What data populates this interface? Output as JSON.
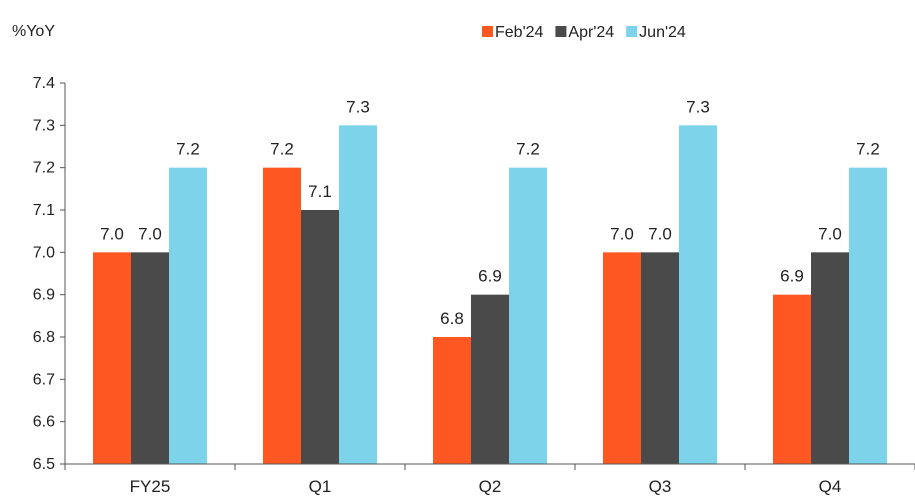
{
  "chart_data": {
    "type": "bar",
    "ylabel": "%YoY",
    "ylim": [
      6.5,
      7.4
    ],
    "yticks": [
      6.5,
      6.6,
      6.7,
      6.8,
      6.9,
      7.0,
      7.1,
      7.2,
      7.3,
      7.4
    ],
    "grid": false,
    "legend_position": "top-right",
    "categories": [
      "FY25",
      "Q1",
      "Q2",
      "Q3",
      "Q4"
    ],
    "series": [
      {
        "name": "Feb'24",
        "color": "#FF5722",
        "values": [
          7.0,
          7.2,
          6.8,
          7.0,
          6.9
        ]
      },
      {
        "name": "Apr'24",
        "color": "#4A4A4A",
        "values": [
          7.0,
          7.1,
          6.9,
          7.0,
          7.0
        ]
      },
      {
        "name": "Jun'24",
        "color": "#7DD3EA",
        "values": [
          7.2,
          7.3,
          7.2,
          7.3,
          7.2
        ]
      }
    ]
  }
}
